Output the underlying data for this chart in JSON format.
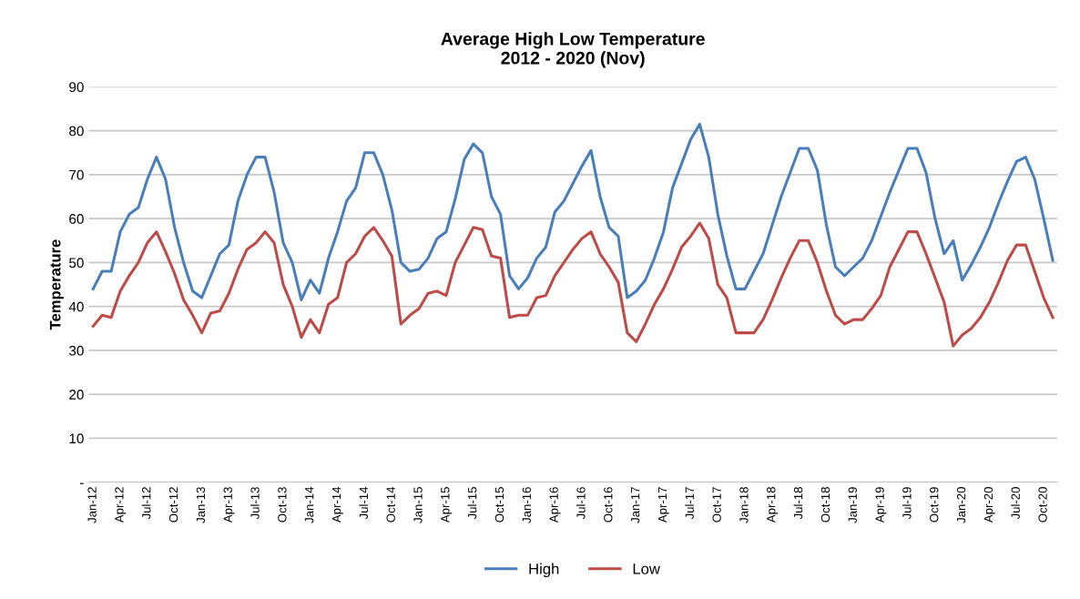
{
  "chart_data": {
    "type": "line",
    "title": "Average High Low Temperature\n2012 - 2020 (Nov)",
    "ylabel": "Temperature",
    "categories": [
      "Jan-12",
      null,
      null,
      "Apr-12",
      null,
      null,
      "Jul-12",
      null,
      null,
      "Oct-12",
      null,
      null,
      "Jan-13",
      null,
      null,
      "Apr-13",
      null,
      null,
      "Jul-13",
      null,
      null,
      "Oct-13",
      null,
      null,
      "Jan-14",
      null,
      null,
      "Apr-14",
      null,
      null,
      "Jul-14",
      null,
      null,
      "Oct-14",
      null,
      null,
      "Jan-15",
      null,
      null,
      "Apr-15",
      null,
      null,
      "Jul-15",
      null,
      null,
      "Oct-15",
      null,
      null,
      "Jan-16",
      null,
      null,
      "Apr-16",
      null,
      null,
      "Jul-16",
      null,
      null,
      "Oct-16",
      null,
      null,
      "Jan-17",
      null,
      null,
      "Apr-17",
      null,
      null,
      "Jul-17",
      null,
      null,
      "Oct-17",
      null,
      null,
      "Jan-18",
      null,
      null,
      "Apr-18",
      null,
      null,
      "Jul-18",
      null,
      null,
      "Oct-18",
      null,
      null,
      "Jan-19",
      null,
      null,
      "Apr-19",
      null,
      null,
      "Jul-19",
      null,
      null,
      "Oct-19",
      null,
      null,
      "Jan-20",
      null,
      null,
      "Apr-20",
      null,
      null,
      "Jul-20",
      null,
      null,
      "Oct-20",
      null
    ],
    "series": [
      {
        "name": "High",
        "color": "#4a7ebb",
        "values": [
          44,
          48,
          48,
          57,
          61,
          62.5,
          69,
          74,
          69,
          58,
          50,
          43.5,
          42,
          47,
          52,
          54,
          64,
          70,
          74,
          74,
          66,
          54.5,
          50,
          41.5,
          46,
          43,
          51,
          57,
          64,
          67,
          75,
          75,
          70,
          62,
          50,
          48,
          48.5,
          51,
          55.5,
          57,
          64.5,
          73.5,
          77,
          75,
          65,
          61,
          47,
          44,
          46.5,
          51,
          53.5,
          61.5,
          64,
          68,
          72,
          75.5,
          65,
          58,
          56,
          42,
          43.5,
          46,
          51,
          57,
          67,
          72.5,
          78,
          81.5,
          74,
          61,
          51.5,
          44,
          44,
          48,
          52,
          58.5,
          65,
          70.5,
          76,
          76,
          71,
          58.5,
          49,
          47,
          49,
          51,
          55,
          60.5,
          66,
          71,
          76,
          76,
          70.5,
          60,
          52,
          55,
          46,
          49.5,
          53.5,
          58,
          63.5,
          68.5,
          73,
          74,
          69,
          60,
          50.5
        ]
      },
      {
        "name": "Low",
        "color": "#be4b48",
        "values": [
          35.5,
          38,
          37.5,
          43.5,
          47,
          50,
          54.5,
          57,
          52.5,
          47.5,
          41.5,
          38,
          34,
          38.5,
          39,
          43,
          48.5,
          53,
          54.5,
          57,
          54.5,
          45,
          40,
          33,
          37,
          34,
          40.5,
          42,
          50,
          52,
          56,
          58,
          55,
          51.5,
          36,
          38,
          39.5,
          43,
          43.5,
          42.5,
          50,
          54,
          58,
          57.5,
          51.5,
          51,
          37.5,
          38,
          38,
          42,
          42.5,
          47,
          50,
          53,
          55.5,
          57,
          52,
          49,
          45.5,
          34,
          32,
          36,
          40.5,
          44,
          48.5,
          53.5,
          56,
          59,
          55.5,
          45,
          42,
          34,
          34,
          34,
          37,
          41.5,
          46.5,
          51,
          55,
          55,
          50,
          43.5,
          38,
          36,
          37,
          37,
          39.5,
          42.5,
          49,
          53,
          57,
          57,
          52,
          46.5,
          41,
          31,
          33.5,
          35,
          37.5,
          41,
          45.5,
          50.5,
          54,
          54,
          48,
          42,
          37.5
        ]
      }
    ],
    "ylim": [
      0,
      90
    ],
    "yticks": [
      {
        "value": 0,
        "label": "-"
      },
      10,
      20,
      30,
      40,
      50,
      60,
      70,
      80,
      90
    ],
    "grid": "y",
    "legend": "bottom",
    "marker": "none",
    "line_style": "solid"
  }
}
